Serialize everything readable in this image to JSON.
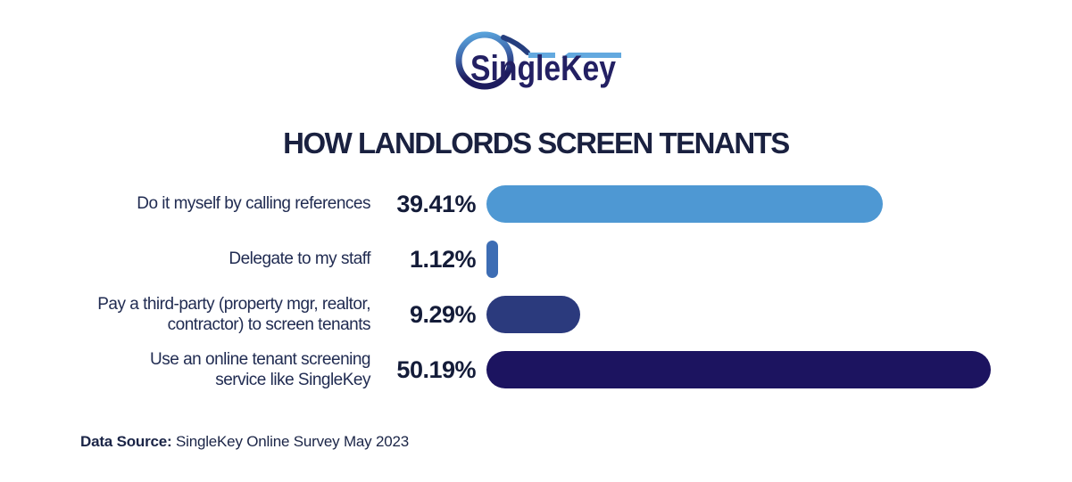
{
  "logo": {
    "text": "SingleKey",
    "colors": {
      "navy": "#232063",
      "light_blue": "#63A9DF",
      "gradient_top": "#5BA7DE",
      "gradient_bottom": "#1D1B5E"
    }
  },
  "title": "HOW LANDLORDS SCREEN TENANTS",
  "chart_data": {
    "type": "bar",
    "orientation": "horizontal",
    "title": "HOW LANDLORDS SCREEN TENANTS",
    "categories": [
      "Do it myself by calling references",
      "Delegate to my staff",
      "Pay a third-party (property mgr, realtor, contractor) to screen tenants",
      "Use an online tenant screening service like SingleKey"
    ],
    "values": [
      39.41,
      1.12,
      9.29,
      50.19
    ],
    "value_labels": [
      "39.41%",
      "1.12%",
      "9.29%",
      "50.19%"
    ],
    "bar_colors": [
      "#4E98D3",
      "#3D6DB4",
      "#2B3A7D",
      "#1C1460"
    ],
    "xlim": [
      0,
      50.19
    ],
    "grid": false,
    "legend": false
  },
  "rows": [
    {
      "label": "Do it myself by calling references",
      "value_label": "39.41%"
    },
    {
      "label": "Delegate to my staff",
      "value_label": "1.12%"
    },
    {
      "label": "Pay a third-party (property mgr, realtor,\ncontractor) to screen tenants",
      "value_label": "9.29%"
    },
    {
      "label": "Use an online tenant screening\nservice like SingleKey",
      "value_label": "50.19%"
    }
  ],
  "footer": {
    "source_label": "Data Source:",
    "source_text": " SingleKey Online Survey May 2023"
  }
}
